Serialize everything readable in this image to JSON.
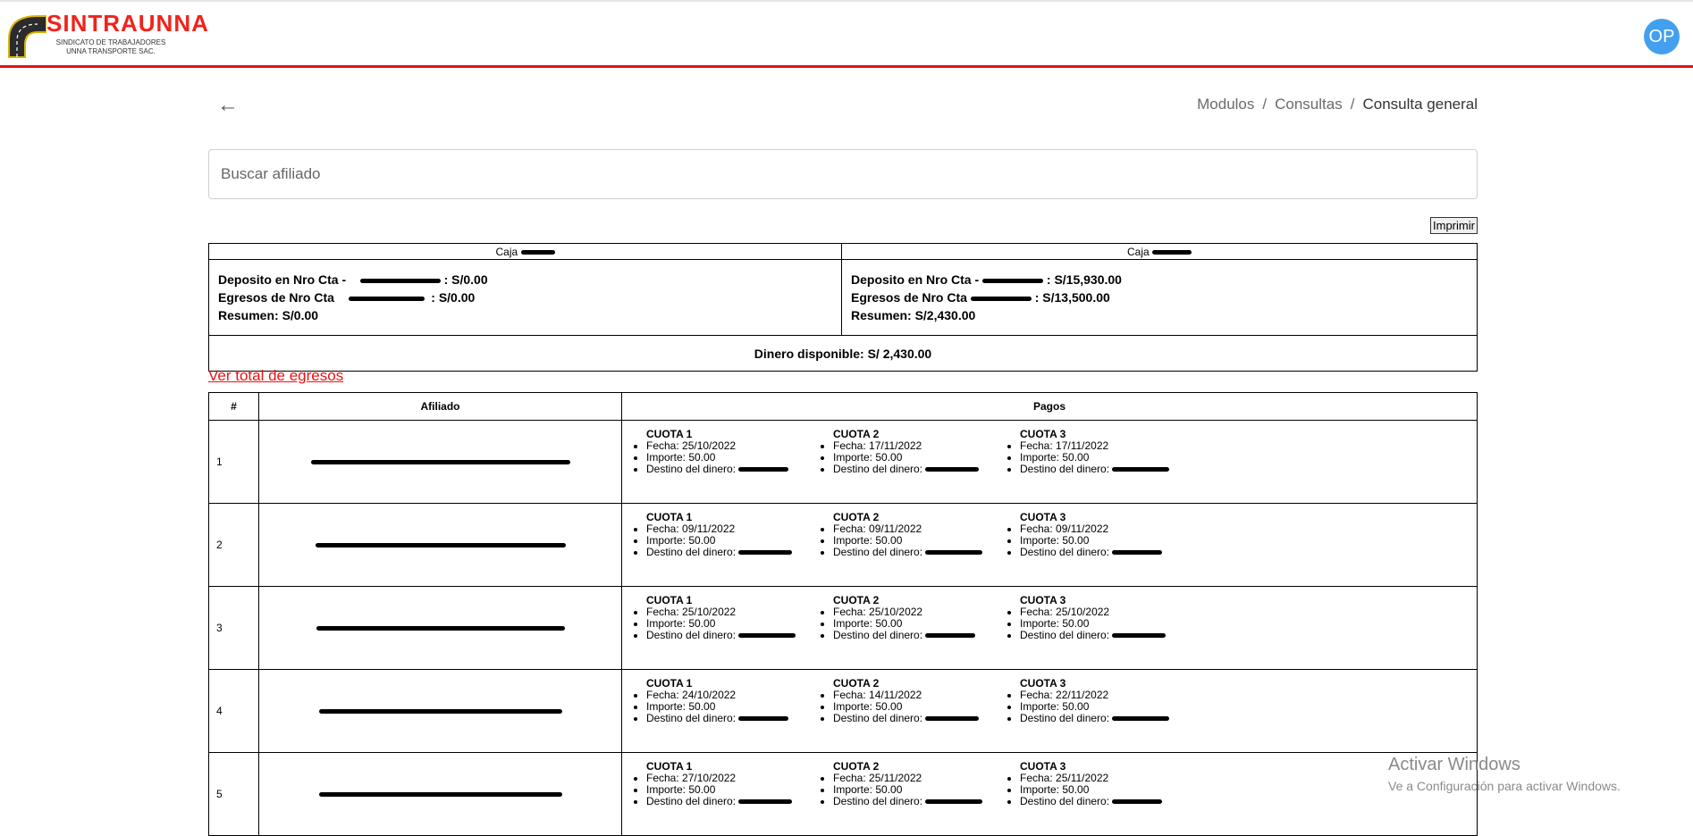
{
  "header": {
    "logo_text": "SINTRAUNNA",
    "logo_sub1": "SINDICATO DE TRABAJADORES",
    "logo_sub2": "UNNA TRANSPORTE SAC.",
    "avatar": "OP",
    "accent": "#e0141b",
    "avatar_color": "#42a0ee"
  },
  "nav": {
    "back_icon": "arrow-left-icon",
    "breadcrumb": [
      "Modulos",
      "Consultas",
      "Consulta general"
    ],
    "separator": "/"
  },
  "search": {
    "placeholder": "Buscar afiliado",
    "value": ""
  },
  "print_label": "Imprimir",
  "cajas": [
    {
      "title": "Caja",
      "deposito_label": "Deposito en Nro Cta -",
      "deposito": ": S/0.00",
      "egresos_label": "Egresos de Nro Cta",
      "egresos": ": S/0.00",
      "resumen": "Resumen: S/0.00"
    },
    {
      "title": "Caja",
      "deposito_label": "Deposito en Nro Cta -",
      "deposito": ": S/15,930.00",
      "egresos_label": "Egresos de Nro Cta",
      "egresos": ": S/13,500.00",
      "resumen": "Resumen: S/2,430.00"
    }
  ],
  "dinero_disponible": "Dinero disponible: S/ 2,430.00",
  "ver_egresos": "Ver total de egresos",
  "table": {
    "headers": [
      "#",
      "Afiliado",
      "Pagos"
    ],
    "labels": {
      "fecha": "Fecha: ",
      "importe": "Importe: ",
      "destino": "Destino del dinero:"
    },
    "rows": [
      {
        "n": "1",
        "cuotas": [
          {
            "t": "CUOTA 1",
            "f": "25/10/2022",
            "i": "50.00"
          },
          {
            "t": "CUOTA 2",
            "f": "17/11/2022",
            "i": "50.00"
          },
          {
            "t": "CUOTA 3",
            "f": "17/11/2022",
            "i": "50.00"
          }
        ]
      },
      {
        "n": "2",
        "cuotas": [
          {
            "t": "CUOTA 1",
            "f": "09/11/2022",
            "i": "50.00"
          },
          {
            "t": "CUOTA 2",
            "f": "09/11/2022",
            "i": "50.00"
          },
          {
            "t": "CUOTA 3",
            "f": "09/11/2022",
            "i": "50.00"
          }
        ]
      },
      {
        "n": "3",
        "cuotas": [
          {
            "t": "CUOTA 1",
            "f": "25/10/2022",
            "i": "50.00"
          },
          {
            "t": "CUOTA 2",
            "f": "25/10/2022",
            "i": "50.00"
          },
          {
            "t": "CUOTA 3",
            "f": "25/10/2022",
            "i": "50.00"
          }
        ]
      },
      {
        "n": "4",
        "cuotas": [
          {
            "t": "CUOTA 1",
            "f": "24/10/2022",
            "i": "50.00"
          },
          {
            "t": "CUOTA 2",
            "f": "14/11/2022",
            "i": "50.00"
          },
          {
            "t": "CUOTA 3",
            "f": "22/11/2022",
            "i": "50.00"
          }
        ]
      },
      {
        "n": "5",
        "cuotas": [
          {
            "t": "CUOTA 1",
            "f": "27/10/2022",
            "i": "50.00"
          },
          {
            "t": "CUOTA 2",
            "f": "25/11/2022",
            "i": "50.00"
          },
          {
            "t": "CUOTA 3",
            "f": "25/11/2022",
            "i": "50.00"
          }
        ]
      }
    ]
  },
  "watermark": {
    "title": "Activar Windows",
    "sub": "Ve a Configuración para activar Windows."
  }
}
